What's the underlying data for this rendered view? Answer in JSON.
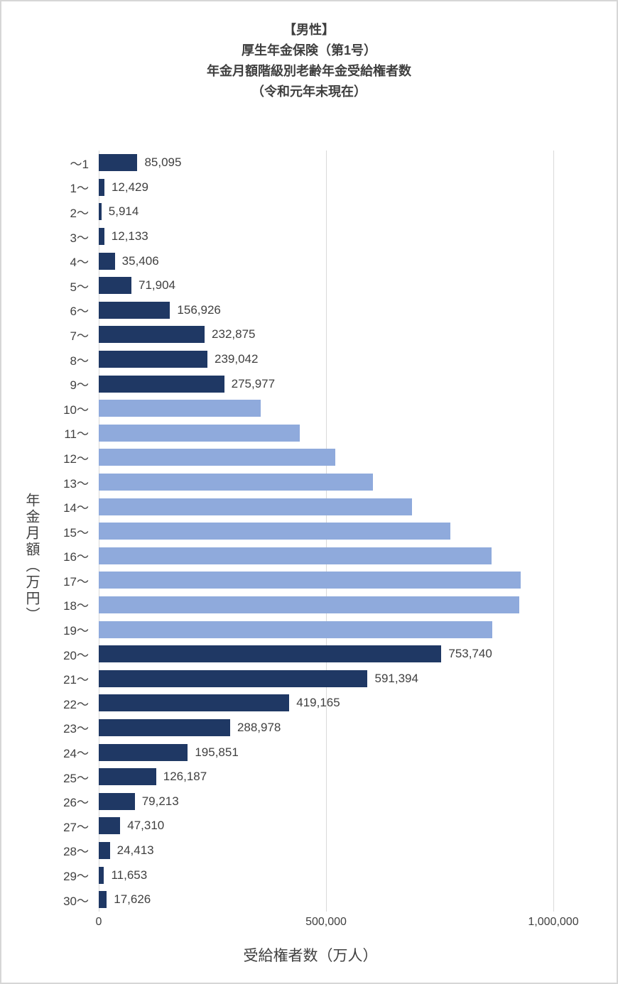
{
  "title": {
    "line1": "【男性】",
    "line2": "厚生年金保険（第1号）",
    "line3": "年金月額階級別老齢年金受給権者数",
    "line4": "（令和元年末現在）"
  },
  "chart_data": {
    "type": "bar",
    "orientation": "horizontal",
    "title": "【男性】厚生年金保険（第1号）年金月額階級別老齢年金受給権者数（令和元年末現在）",
    "xlabel": "受給権者数（万人）",
    "ylabel": "年金月額（万円）",
    "xlim": [
      0,
      1000000
    ],
    "xticks": [
      "0",
      "500,000",
      "1,000,000"
    ],
    "grid": true,
    "legend": "none",
    "colors": {
      "dark": "#1f3864",
      "light": "#8faadc"
    },
    "categories": [
      "〜1",
      "1〜",
      "2〜",
      "3〜",
      "4〜",
      "5〜",
      "6〜",
      "7〜",
      "8〜",
      "9〜",
      "10〜",
      "11〜",
      "12〜",
      "13〜",
      "14〜",
      "15〜",
      "16〜",
      "17〜",
      "18〜",
      "19〜",
      "20〜",
      "21〜",
      "22〜",
      "23〜",
      "24〜",
      "25〜",
      "26〜",
      "27〜",
      "28〜",
      "29〜",
      "30〜"
    ],
    "values": [
      85095,
      12429,
      5914,
      12133,
      35406,
      71904,
      156926,
      232875,
      239042,
      275977,
      356000,
      442000,
      520000,
      603000,
      689000,
      773000,
      864000,
      928000,
      925000,
      866000,
      753740,
      591394,
      419165,
      288978,
      195851,
      126187,
      79213,
      47310,
      24413,
      11653,
      17626
    ],
    "labels": [
      "85,095",
      "12,429",
      "5,914",
      "12,133",
      "35,406",
      "71,904",
      "156,926",
      "232,875",
      "239,042",
      "275,977",
      "",
      "",
      "",
      "",
      "",
      "",
      "",
      "",
      "",
      "",
      "753,740",
      "591,394",
      "419,165",
      "288,978",
      "195,851",
      "126,187",
      "79,213",
      "47,310",
      "24,413",
      "11,653",
      "17,626"
    ],
    "styles": [
      "dark",
      "dark",
      "dark",
      "dark",
      "dark",
      "dark",
      "dark",
      "dark",
      "dark",
      "dark",
      "light",
      "light",
      "light",
      "light",
      "light",
      "light",
      "light",
      "light",
      "light",
      "light",
      "dark",
      "dark",
      "dark",
      "dark",
      "dark",
      "dark",
      "dark",
      "dark",
      "dark",
      "dark",
      "dark"
    ]
  }
}
